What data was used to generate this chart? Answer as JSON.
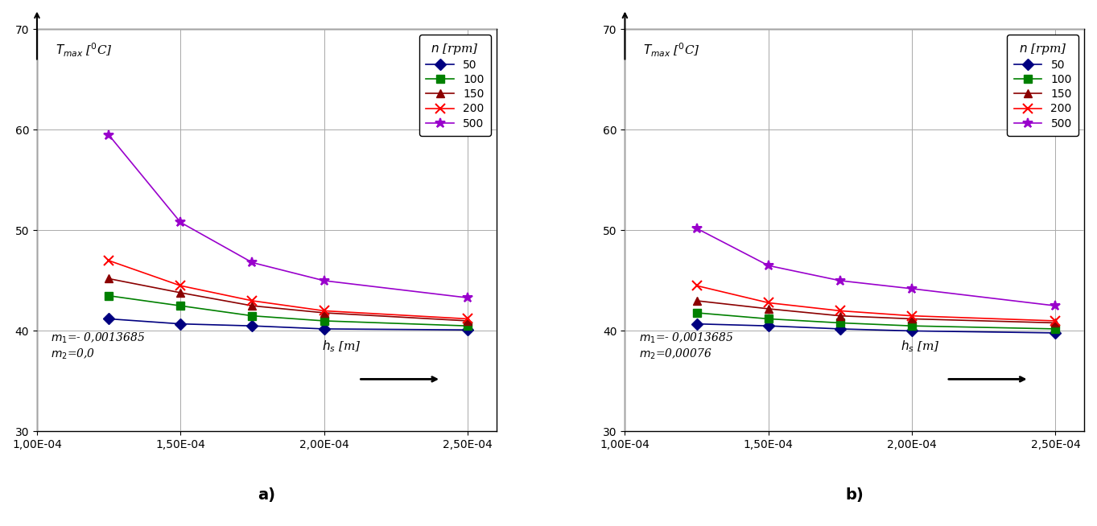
{
  "x_values": [
    0.000125,
    0.00015,
    0.000175,
    0.0002,
    0.00025
  ],
  "panel_a": {
    "n50": [
      41.2,
      40.7,
      40.5,
      40.2,
      40.1
    ],
    "n100": [
      43.5,
      42.5,
      41.5,
      41.0,
      40.5
    ],
    "n150": [
      45.2,
      43.8,
      42.5,
      41.8,
      41.0
    ],
    "n200": [
      47.0,
      44.5,
      43.0,
      42.0,
      41.2
    ],
    "n500": [
      59.5,
      50.8,
      46.8,
      45.0,
      43.3
    ]
  },
  "panel_b": {
    "n50": [
      40.7,
      40.5,
      40.2,
      40.0,
      39.8
    ],
    "n100": [
      41.8,
      41.2,
      40.8,
      40.5,
      40.2
    ],
    "n150": [
      43.0,
      42.2,
      41.5,
      41.2,
      40.8
    ],
    "n200": [
      44.5,
      42.8,
      42.0,
      41.5,
      41.0
    ],
    "n500": [
      50.2,
      46.5,
      45.0,
      44.2,
      42.5
    ]
  },
  "series_labels": [
    "50",
    "100",
    "150",
    "200",
    "500"
  ],
  "series_colors": [
    "#000080",
    "#008000",
    "#8B0000",
    "#FF0000",
    "#9900CC"
  ],
  "series_markers": [
    "D",
    "s",
    "^",
    "x",
    "*"
  ],
  "series_linestyles": [
    "-",
    "-",
    "-",
    "-",
    "-"
  ],
  "xlabel_a": "$h_s$ [m]",
  "xlabel_b": "$h_s$ [m]",
  "ylabel": "$T_{max}$ [$^0$C]",
  "ylim": [
    30,
    70
  ],
  "xlim": [
    0.0001,
    0.00026
  ],
  "yticks": [
    30,
    40,
    50,
    60,
    70
  ],
  "annotation_a": "$m_1$=- 0,0013685\n$m_2$=0,0",
  "annotation_b": "$m_1$=- 0,0013685\n$m_2$=0,00076",
  "legend_title": "$n$ [rpm]",
  "label_a": "a)",
  "label_b": "b)",
  "bg_color": "#ffffff"
}
